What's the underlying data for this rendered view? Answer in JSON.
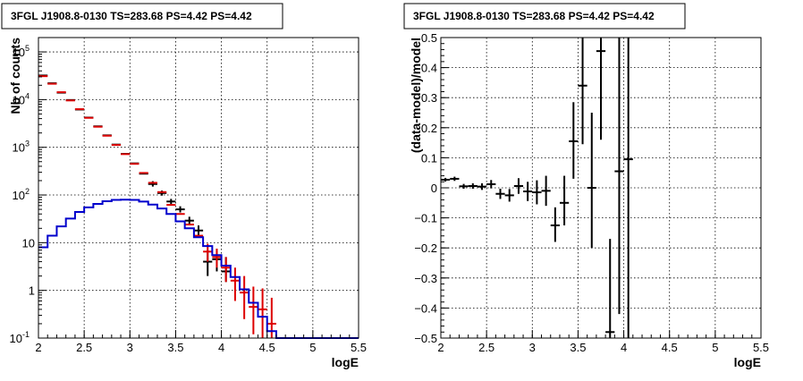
{
  "colors": {
    "data": "#000000",
    "model_total": "#dd0000",
    "model_component": "#0000cc",
    "grid": "#000000"
  },
  "chart_data": [
    {
      "type": "histogram",
      "title": "3FGL J1908.8-0130 TS=283.68 PS=4.42 PS=4.42",
      "xlabel": "logE",
      "ylabel": "Nb of counts",
      "xlim": [
        2,
        5.5
      ],
      "ylim": [
        0.1,
        200000
      ],
      "yscale": "log",
      "grid": true,
      "xticks": [
        "2",
        "2.5",
        "3",
        "3.5",
        "4",
        "4.5",
        "5",
        "5.5"
      ],
      "yticks": [
        {
          "value": 0.1,
          "base": "10",
          "exp": "-1"
        },
        {
          "value": 1,
          "base": "1",
          "exp": ""
        },
        {
          "value": 10,
          "base": "10",
          "exp": ""
        },
        {
          "value": 100,
          "base": "10",
          "exp": "2"
        },
        {
          "value": 1000,
          "base": "10",
          "exp": "3"
        },
        {
          "value": 10000,
          "base": "10",
          "exp": "4"
        },
        {
          "value": 100000,
          "base": "10",
          "exp": "5"
        }
      ],
      "bin_width": 0.1,
      "series": [
        {
          "kind": "points",
          "color": "#000000",
          "points": [
            {
              "x": 2.05,
              "y": 32000
            },
            {
              "x": 2.15,
              "y": 22000
            },
            {
              "x": 2.25,
              "y": 14000
            },
            {
              "x": 2.35,
              "y": 9800
            },
            {
              "x": 2.45,
              "y": 6200
            },
            {
              "x": 2.55,
              "y": 4200
            },
            {
              "x": 2.65,
              "y": 2750
            },
            {
              "x": 2.75,
              "y": 1780
            },
            {
              "x": 2.85,
              "y": 1140
            },
            {
              "x": 2.95,
              "y": 730
            },
            {
              "x": 3.05,
              "y": 460
            },
            {
              "x": 3.15,
              "y": 280
            },
            {
              "x": 3.25,
              "y": 170,
              "lo": 150,
              "hi": 195
            },
            {
              "x": 3.35,
              "y": 110,
              "lo": 97,
              "hi": 124
            },
            {
              "x": 3.45,
              "y": 73,
              "lo": 64,
              "hi": 83
            },
            {
              "x": 3.55,
              "y": 50,
              "lo": 43,
              "hi": 58
            },
            {
              "x": 3.65,
              "y": 29,
              "lo": 24,
              "hi": 35
            },
            {
              "x": 3.75,
              "y": 18,
              "lo": 14,
              "hi": 23
            },
            {
              "x": 3.85,
              "y": 4,
              "lo": 2,
              "hi": 7
            },
            {
              "x": 3.95,
              "y": 4.5,
              "lo": 2.5,
              "hi": 7.5
            },
            {
              "x": 4.05,
              "y": 2.5,
              "lo": 1.5,
              "hi": 5
            }
          ]
        },
        {
          "kind": "points",
          "color": "#dd0000",
          "points": [
            {
              "x": 2.05,
              "y": 31000
            },
            {
              "x": 2.15,
              "y": 21500
            },
            {
              "x": 2.25,
              "y": 14300
            },
            {
              "x": 2.35,
              "y": 9600
            },
            {
              "x": 2.45,
              "y": 6300
            },
            {
              "x": 2.55,
              "y": 4150
            },
            {
              "x": 2.65,
              "y": 2700
            },
            {
              "x": 2.75,
              "y": 1750
            },
            {
              "x": 2.85,
              "y": 1120
            },
            {
              "x": 2.95,
              "y": 720
            },
            {
              "x": 3.05,
              "y": 450
            },
            {
              "x": 3.15,
              "y": 290
            },
            {
              "x": 3.25,
              "y": 180
            },
            {
              "x": 3.35,
              "y": 115
            },
            {
              "x": 3.45,
              "y": 62
            },
            {
              "x": 3.55,
              "y": 40
            },
            {
              "x": 3.65,
              "y": 24
            },
            {
              "x": 3.75,
              "y": 14
            },
            {
              "x": 3.85,
              "y": 6.5,
              "lo": 4,
              "hi": 9.5
            },
            {
              "x": 3.95,
              "y": 5,
              "lo": 3,
              "hi": 7.5
            },
            {
              "x": 4.05,
              "y": 3,
              "lo": 1.5,
              "hi": 5
            },
            {
              "x": 4.15,
              "y": 1.6,
              "lo": 0.6,
              "hi": 3
            },
            {
              "x": 4.25,
              "y": 0.9,
              "lo": 0.25,
              "hi": 2.0
            },
            {
              "x": 4.35,
              "y": 0.45,
              "lo": 0.12,
              "hi": 1.2
            },
            {
              "x": 4.45,
              "y": 0.4,
              "lo": 0.1,
              "hi": 1.1
            },
            {
              "x": 4.55,
              "y": 0.2,
              "lo": 0.1,
              "hi": 0.7
            }
          ]
        },
        {
          "kind": "step",
          "color": "#0000cc",
          "values": [
            8,
            14,
            22,
            32,
            44,
            55,
            65,
            74,
            79,
            80,
            79,
            73,
            63,
            52,
            40,
            28,
            20,
            13,
            8.5,
            5.5,
            3.3,
            1.9,
            1.05,
            0.55,
            0.28,
            0.14,
            0.1,
            0.1,
            0.1,
            0.1,
            0.1,
            0.1,
            0.1,
            0.1,
            0.1
          ]
        }
      ]
    },
    {
      "type": "scatter",
      "title": "3FGL J1908.8-0130 TS=283.68 PS=4.42 PS=4.42",
      "xlabel": "logE",
      "ylabel": "(data-model)/model",
      "xlim": [
        2,
        5.5
      ],
      "ylim": [
        -0.5,
        0.5
      ],
      "grid": true,
      "xticks": [
        "2",
        "2.5",
        "3",
        "3.5",
        "4",
        "4.5",
        "5",
        "5.5"
      ],
      "yticks": [
        "-0.5",
        "-0.4",
        "-0.3",
        "-0.2",
        "-0.1",
        "0",
        "0.1",
        "0.2",
        "0.3",
        "0.4",
        "0.5"
      ],
      "bin_width": 0.1,
      "series": [
        {
          "kind": "points",
          "color": "#000000",
          "points": [
            {
              "x": 2.05,
              "y": 0.027,
              "lo": 0.021,
              "hi": 0.033
            },
            {
              "x": 2.15,
              "y": 0.03,
              "lo": 0.023,
              "hi": 0.037
            },
            {
              "x": 2.25,
              "y": 0.005,
              "lo": -0.003,
              "hi": 0.013
            },
            {
              "x": 2.35,
              "y": 0.006,
              "lo": -0.003,
              "hi": 0.015
            },
            {
              "x": 2.45,
              "y": 0.004,
              "lo": -0.007,
              "hi": 0.015
            },
            {
              "x": 2.55,
              "y": 0.012,
              "lo": -0.002,
              "hi": 0.026
            },
            {
              "x": 2.65,
              "y": -0.02,
              "lo": -0.037,
              "hi": -0.003
            },
            {
              "x": 2.75,
              "y": -0.025,
              "lo": -0.046,
              "hi": -0.004
            },
            {
              "x": 2.85,
              "y": 0.006,
              "lo": -0.02,
              "hi": 0.032
            },
            {
              "x": 2.95,
              "y": -0.012,
              "lo": -0.044,
              "hi": 0.02
            },
            {
              "x": 3.05,
              "y": -0.015,
              "lo": -0.055,
              "hi": 0.025
            },
            {
              "x": 3.15,
              "y": -0.01,
              "lo": -0.06,
              "hi": 0.04
            },
            {
              "x": 3.25,
              "y": -0.125,
              "lo": -0.18,
              "hi": -0.065
            },
            {
              "x": 3.35,
              "y": -0.05,
              "lo": -0.125,
              "hi": 0.04
            },
            {
              "x": 3.45,
              "y": 0.155,
              "lo": 0.03,
              "hi": 0.285
            },
            {
              "x": 3.55,
              "y": 0.34,
              "lo": 0.145,
              "hi": 0.5
            },
            {
              "x": 3.65,
              "y": 0.0,
              "lo": -0.2,
              "hi": 0.25
            },
            {
              "x": 3.75,
              "y": 0.455,
              "lo": 0.16,
              "hi": 0.5
            },
            {
              "x": 3.85,
              "y": -0.48,
              "lo": -0.5,
              "hi": -0.17
            },
            {
              "x": 3.95,
              "y": 0.055,
              "lo": -0.42,
              "hi": 0.5
            },
            {
              "x": 4.05,
              "y": 0.095,
              "lo": -0.5,
              "hi": 0.5
            }
          ]
        }
      ]
    }
  ]
}
